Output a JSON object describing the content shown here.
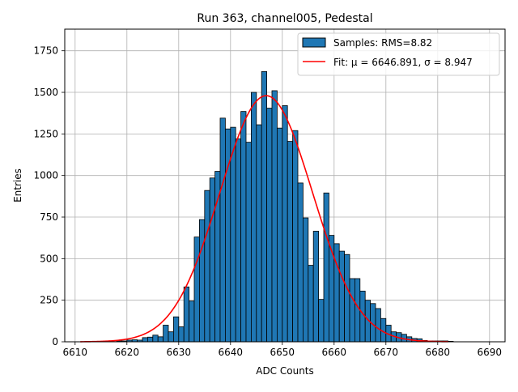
{
  "chart_data": {
    "type": "bar",
    "title": "Run 363, channel005, Pedestal",
    "xlabel": "ADC Counts",
    "ylabel": "Entries",
    "xlim": [
      6608,
      6693
    ],
    "ylim": [
      0,
      1880
    ],
    "xticks": [
      6610,
      6620,
      6630,
      6640,
      6650,
      6660,
      6670,
      6680,
      6690
    ],
    "yticks": [
      0,
      250,
      500,
      750,
      1000,
      1250,
      1500,
      1750
    ],
    "grid": true,
    "legend_position": "top-right",
    "colors": {
      "bars": "#1f77b4",
      "bar_edge": "#000000",
      "fit": "#ff0000",
      "grid": "#b0b0b0"
    },
    "histogram": {
      "name": "Samples: RMS=8.82",
      "bin_width": 1,
      "bin_start": 6611,
      "counts": [
        0,
        0,
        0,
        0,
        0,
        0,
        0,
        5,
        5,
        10,
        12,
        10,
        25,
        28,
        40,
        30,
        100,
        60,
        150,
        90,
        330,
        245,
        630,
        735,
        910,
        985,
        1025,
        1345,
        1280,
        1290,
        1220,
        1385,
        1200,
        1500,
        1305,
        1625,
        1405,
        1510,
        1285,
        1420,
        1205,
        1270,
        955,
        745,
        460,
        665,
        255,
        895,
        640,
        590,
        545,
        525,
        380,
        380,
        305,
        250,
        230,
        200,
        140,
        100,
        60,
        55,
        45,
        30,
        20,
        18,
        8,
        5,
        5,
        5,
        5,
        3
      ]
    },
    "fit": {
      "name": "Fit: μ = 6646.891, σ = 8.947",
      "mu": 6646.891,
      "sigma": 8.947,
      "amplitude": 1480,
      "x_range": [
        6611,
        6682
      ]
    },
    "legend": [
      {
        "label": "Samples: RMS=8.82",
        "kind": "patch"
      },
      {
        "label": "Fit: μ = 6646.891, σ = 8.947",
        "kind": "line"
      }
    ]
  }
}
